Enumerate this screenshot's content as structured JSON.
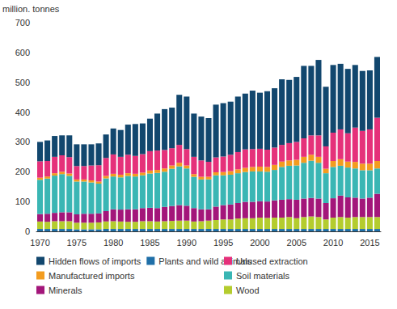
{
  "chart_data": {
    "type": "bar",
    "stacked": true,
    "y_label": "million. tonnes",
    "legend": "bottom",
    "grid": false,
    "ylim": [
      0,
      700
    ],
    "yticks": [
      0,
      100,
      200,
      300,
      400,
      500,
      600,
      700
    ],
    "categories": [
      "1970",
      null,
      null,
      null,
      null,
      "1975",
      null,
      null,
      null,
      null,
      "1980",
      null,
      null,
      null,
      null,
      "1985",
      null,
      null,
      null,
      null,
      "1990",
      null,
      null,
      null,
      null,
      "1995",
      null,
      null,
      null,
      null,
      "2000",
      null,
      null,
      null,
      null,
      "2005",
      null,
      null,
      null,
      null,
      "2010",
      null,
      null,
      null,
      null,
      "2015",
      null
    ],
    "series": [
      {
        "name": "Plants and wild animals",
        "color": "#1f6fa8",
        "values": [
          8,
          8,
          8,
          8,
          8,
          7,
          7,
          7,
          7,
          8,
          8,
          8,
          8,
          8,
          8,
          8,
          8,
          8,
          8,
          8,
          8,
          8,
          8,
          8,
          8,
          8,
          8,
          8,
          8,
          8,
          8,
          8,
          8,
          8,
          8,
          8,
          8,
          8,
          8,
          8,
          8,
          8,
          8,
          8,
          8,
          8,
          8
        ]
      },
      {
        "name": "Wood",
        "color": "#b4cc2e",
        "values": [
          25,
          24,
          26,
          26,
          26,
          22,
          22,
          22,
          23,
          25,
          26,
          25,
          24,
          24,
          26,
          26,
          25,
          26,
          27,
          28,
          28,
          25,
          26,
          28,
          30,
          32,
          32,
          35,
          36,
          36,
          38,
          37,
          38,
          38,
          40,
          36,
          40,
          42,
          40,
          32,
          38,
          40,
          38,
          40,
          40,
          40,
          40
        ]
      },
      {
        "name": "Minerals",
        "color": "#a3167a",
        "values": [
          25,
          27,
          28,
          30,
          30,
          28,
          30,
          30,
          30,
          35,
          40,
          40,
          42,
          42,
          44,
          45,
          45,
          48,
          50,
          52,
          50,
          45,
          40,
          38,
          45,
          48,
          50,
          52,
          55,
          55,
          55,
          55,
          58,
          60,
          60,
          62,
          62,
          62,
          62,
          55,
          65,
          72,
          68,
          65,
          62,
          65,
          78
        ]
      },
      {
        "name": "Soil materials",
        "color": "#3ab6b4",
        "values": [
          115,
          118,
          125,
          128,
          122,
          110,
          108,
          105,
          100,
          110,
          110,
          108,
          112,
          110,
          110,
          115,
          118,
          118,
          125,
          130,
          125,
          105,
          100,
          100,
          105,
          100,
          100,
          100,
          100,
          102,
          100,
          100,
          102,
          110,
          112,
          115,
          120,
          125,
          120,
          100,
          105,
          100,
          100,
          98,
          95,
          92,
          85
        ]
      },
      {
        "name": "Manufactured imports",
        "color": "#f39c1f",
        "values": [
          7,
          7,
          8,
          8,
          8,
          7,
          7,
          7,
          7,
          8,
          9,
          9,
          9,
          9,
          9,
          10,
          10,
          11,
          11,
          12,
          10,
          9,
          9,
          9,
          10,
          11,
          12,
          13,
          14,
          15,
          16,
          16,
          17,
          18,
          18,
          19,
          20,
          20,
          20,
          15,
          20,
          22,
          20,
          22,
          22,
          22,
          25
        ]
      },
      {
        "name": "Unused extraction",
        "color": "#e5317a",
        "values": [
          55,
          52,
          55,
          55,
          55,
          45,
          45,
          50,
          55,
          60,
          65,
          60,
          62,
          60,
          62,
          65,
          65,
          62,
          58,
          60,
          55,
          58,
          55,
          50,
          50,
          52,
          55,
          58,
          62,
          60,
          60,
          58,
          58,
          56,
          58,
          60,
          62,
          65,
          72,
          75,
          95,
          100,
          95,
          115,
          110,
          115,
          145
        ]
      },
      {
        "name": "Hidden flows of imports",
        "color": "#12476e",
        "values": [
          65,
          69,
          70,
          67,
          73,
          73,
          73,
          71,
          73,
          79,
          87,
          90,
          101,
          107,
          103,
          109,
          124,
          137,
          136,
          168,
          176,
          145,
          147,
          147,
          177,
          179,
          178,
          186,
          187,
          196,
          188,
          196,
          199,
          220,
          212,
          218,
          243,
          233,
          253,
          200,
          227,
          220,
          216,
          210,
          201,
          198,
          204
        ]
      }
    ]
  }
}
